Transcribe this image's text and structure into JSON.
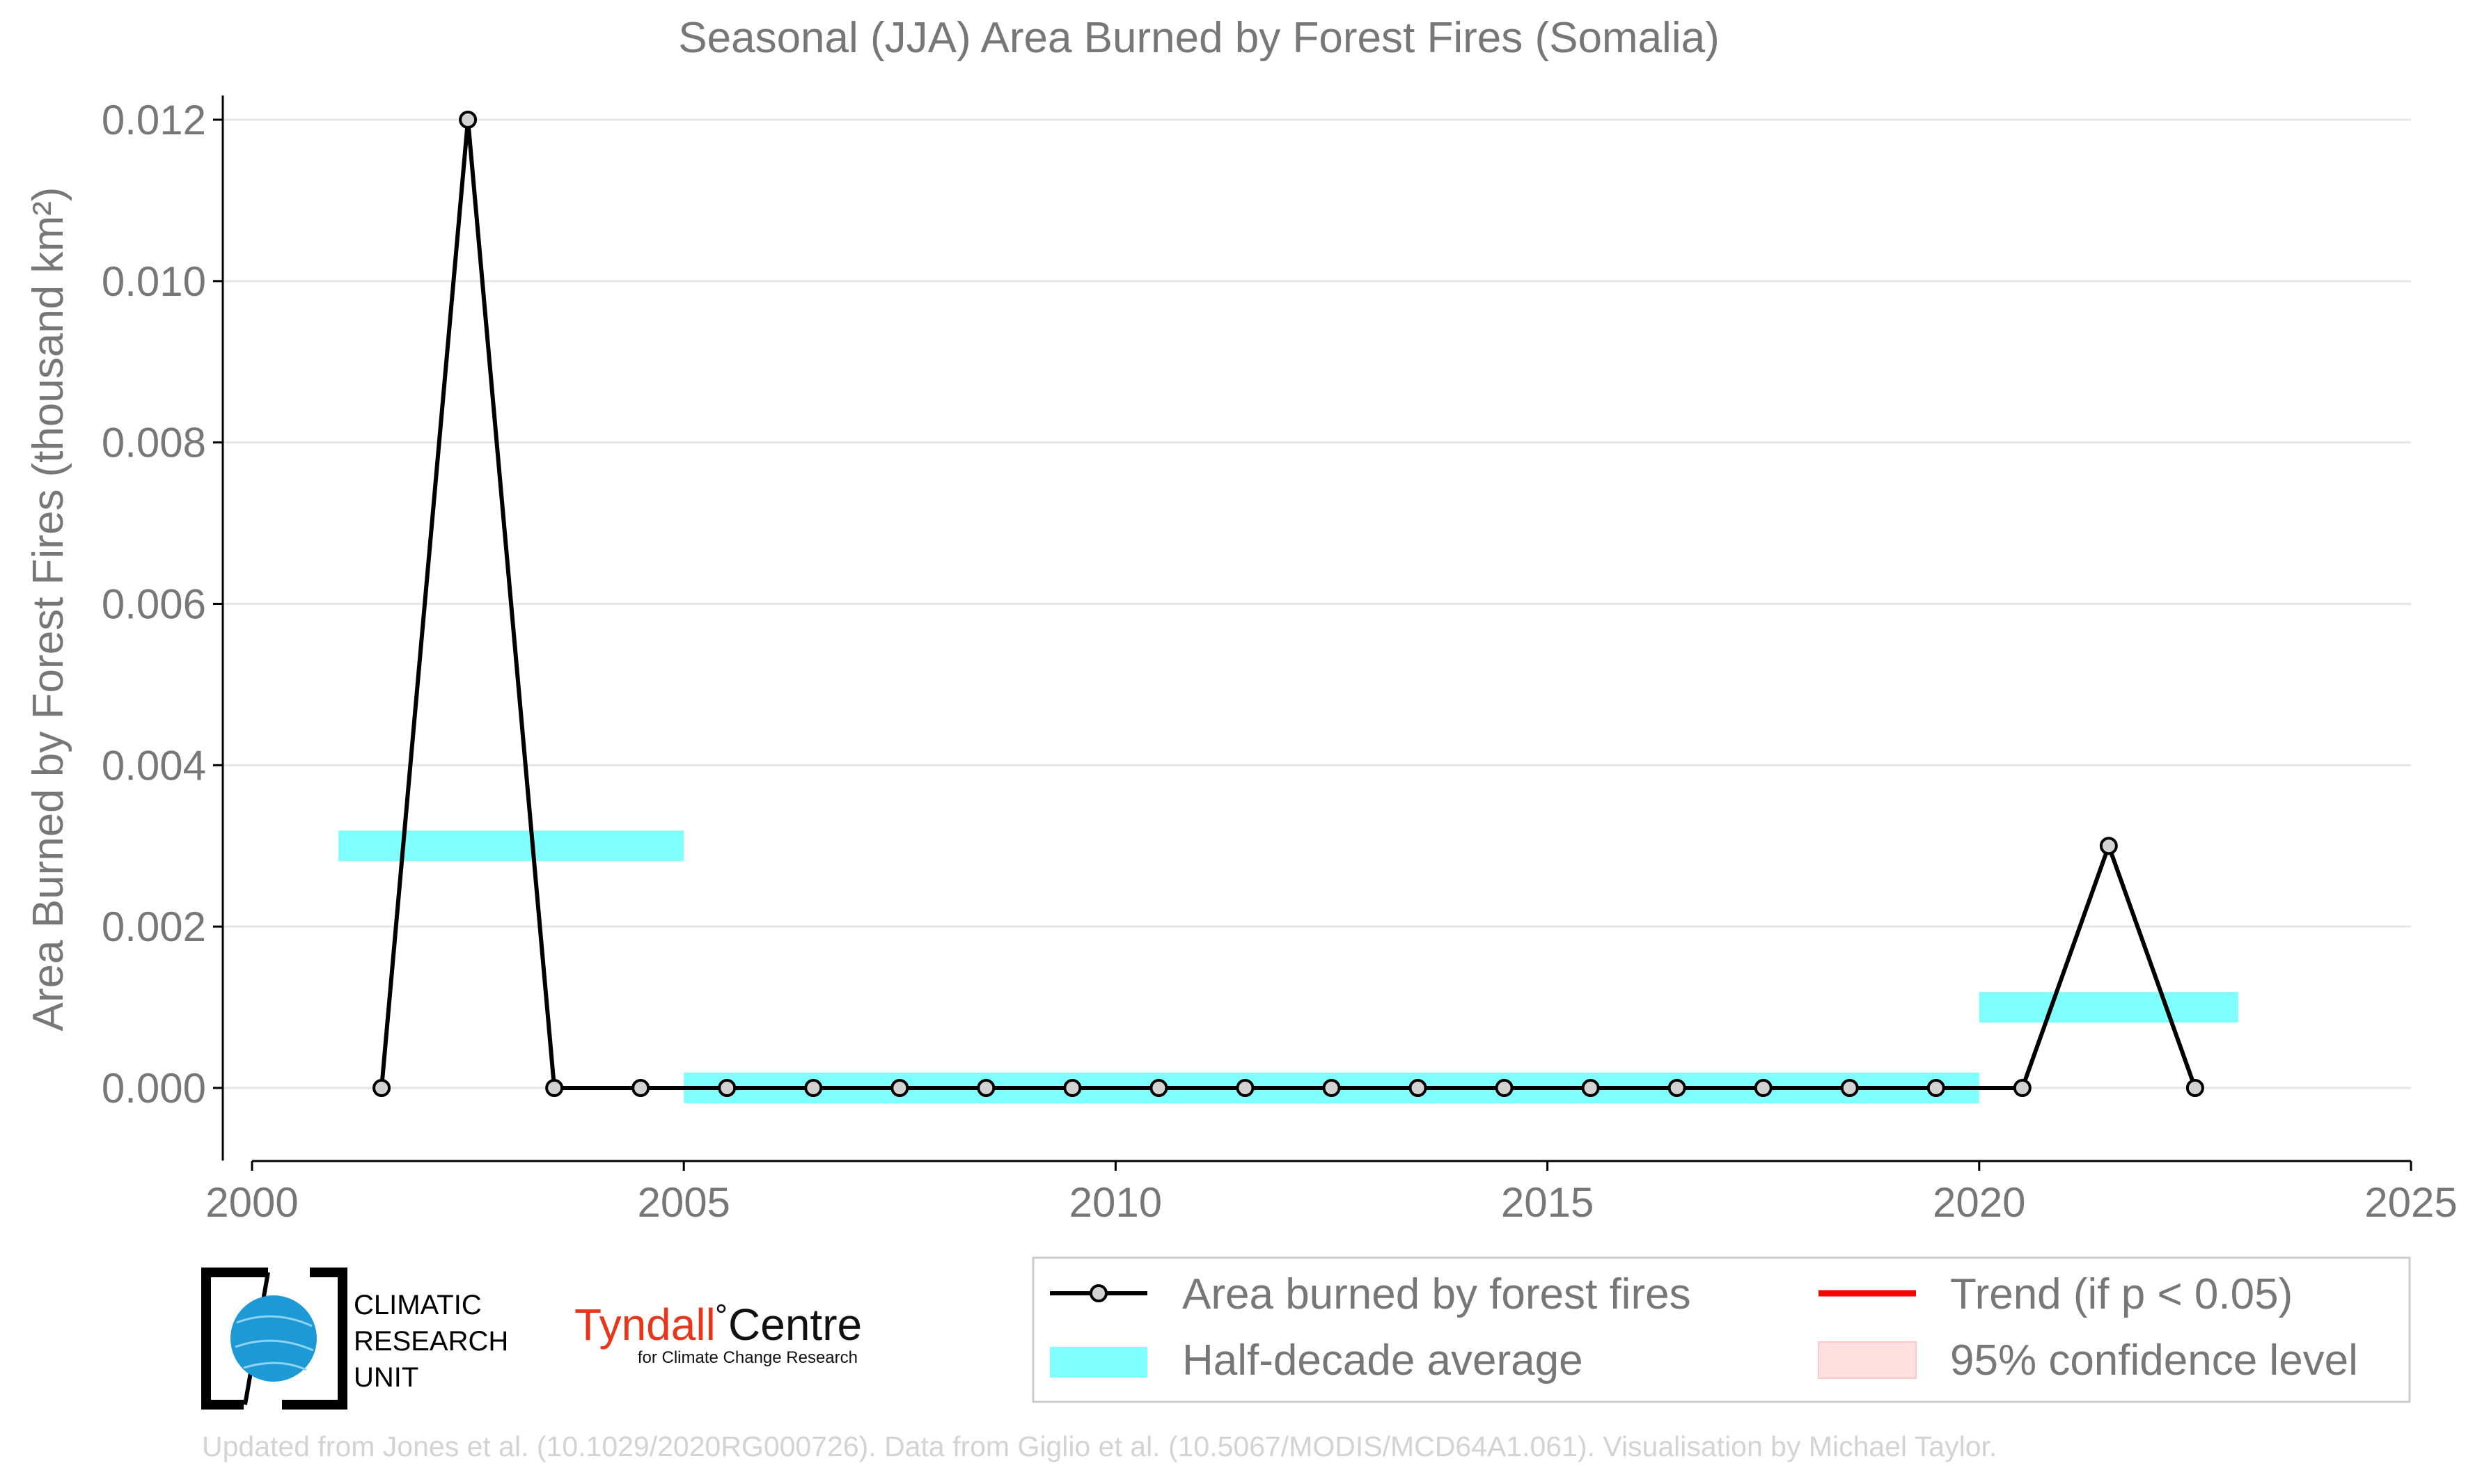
{
  "chart_data": {
    "type": "line",
    "title": "Seasonal (JJA) Area Burned by Forest Fires (Somalia)",
    "ylabel": "Area Burned by Forest Fires (thousand km²)",
    "xlabel": "",
    "xlim": [
      2000,
      2025
    ],
    "ylim": [
      -0.0009,
      0.0123
    ],
    "x_ticks": [
      "2000",
      "2005",
      "2010",
      "2015",
      "2020",
      "2025"
    ],
    "y_ticks": [
      "0.000",
      "0.002",
      "0.004",
      "0.006",
      "0.008",
      "0.010",
      "0.012"
    ],
    "grid": true,
    "series": [
      {
        "name": "Area burned by forest fires",
        "color": "#000000",
        "x": [
          2001.5,
          2002.5,
          2003.5,
          2004.5,
          2005.5,
          2006.5,
          2007.5,
          2008.5,
          2009.5,
          2010.5,
          2011.5,
          2012.5,
          2013.5,
          2014.5,
          2015.5,
          2016.5,
          2017.5,
          2018.5,
          2019.5,
          2020.5,
          2021.5,
          2022.5
        ],
        "y": [
          0,
          0.012,
          0,
          0,
          0,
          0,
          0,
          0,
          0,
          0,
          0,
          0,
          0,
          0,
          0,
          0,
          0,
          0,
          0,
          0,
          0.003,
          0
        ]
      }
    ],
    "half_decade_average": {
      "name": "Half-decade average",
      "color": "#80ffff",
      "segments": [
        {
          "x_start": 2001,
          "x_end": 2005,
          "value": 0.003
        },
        {
          "x_start": 2005,
          "x_end": 2020,
          "value": 0.0
        },
        {
          "x_start": 2020,
          "x_end": 2023,
          "value": 0.001
        }
      ]
    },
    "legend": {
      "placement": "bottom-right",
      "entries": [
        {
          "label": "Area burned by forest fires",
          "kind": "line-marker",
          "color": "#000000"
        },
        {
          "label": "Trend (if p < 0.05)",
          "kind": "line",
          "color": "#ff0000"
        },
        {
          "label": "Half-decade average",
          "kind": "band",
          "color": "#80ffff"
        },
        {
          "label": "95% confidence level",
          "kind": "patch",
          "color": "#ffe0e0"
        }
      ]
    }
  },
  "logos": {
    "cru_lines": [
      "CLIMATIC",
      "RESEARCH",
      "UNIT"
    ],
    "tyndall_red": "Tyndall",
    "tyndall_black": "Centre",
    "tyndall_sub": "for Climate Change Research"
  },
  "credit": "Updated from Jones et al. (10.1029/2020RG000726). Data from Giglio et al. (10.5067/MODIS/MCD64A1.061). Visualisation by Michael Taylor."
}
